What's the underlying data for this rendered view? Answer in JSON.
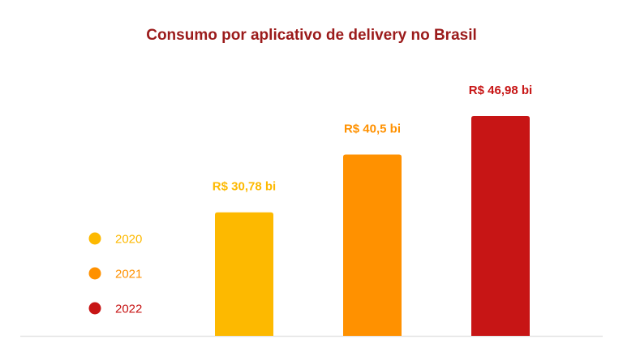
{
  "chart_data": {
    "type": "bar",
    "title": "Consumo por aplicativo de delivery no Brasil",
    "categories": [
      "2020",
      "2021",
      "2022"
    ],
    "values": [
      30.78,
      40.5,
      46.98
    ],
    "data_labels": [
      "R$ 30,78 bi",
      "R$ 40,5 bi",
      "R$ 46,98 bi"
    ],
    "colors": [
      "#fdb900",
      "#ff9100",
      "#c71515"
    ],
    "legend": {
      "placement": "left",
      "entries": [
        "2020",
        "2021",
        "2022"
      ]
    },
    "ylim": [
      10,
      48
    ],
    "grid": false,
    "xlabel": "",
    "ylabel": ""
  }
}
